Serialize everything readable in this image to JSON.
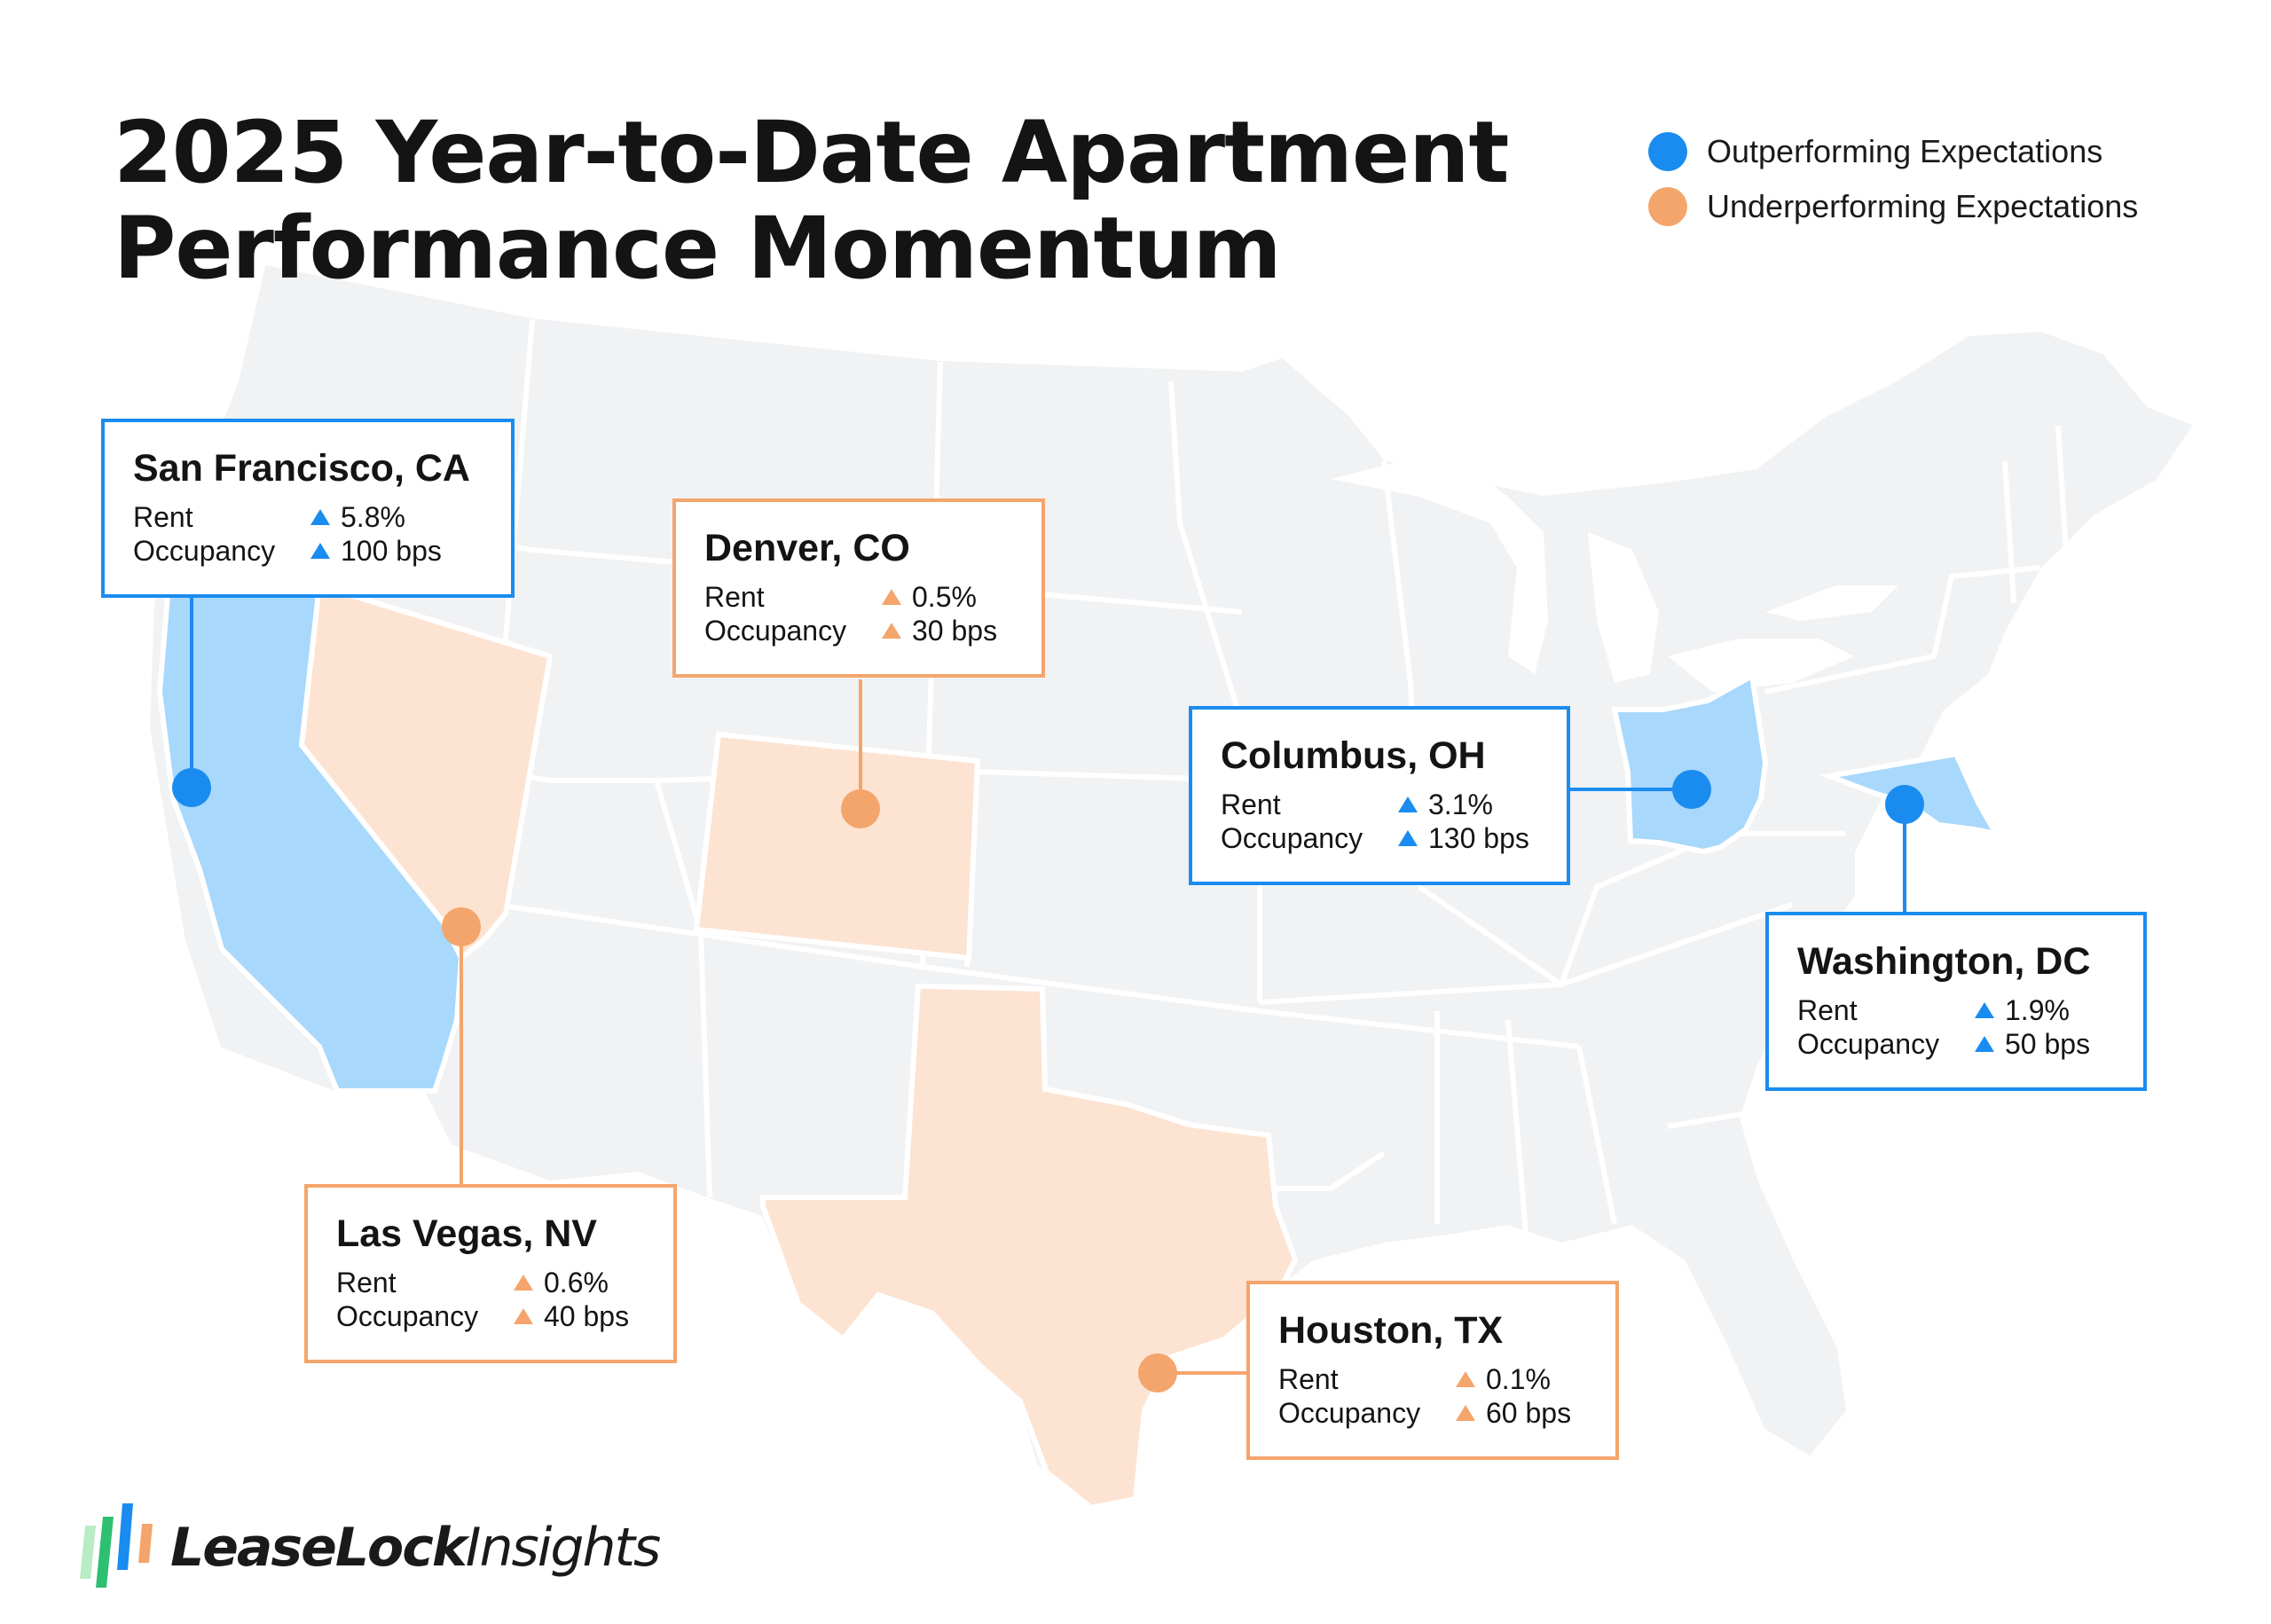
{
  "title": {
    "line1": "2025 Year-to-Date Apartment",
    "line2": "Performance Momentum"
  },
  "colors": {
    "outperform": "#1a8cf0",
    "outperform_fill": "#a8d8fb",
    "underperform": "#f4a56c",
    "underperform_fill": "#fde3d2",
    "land": "#f1f2f4",
    "border": "#ffffff"
  },
  "legend": {
    "outperform": "Outperforming Expectations",
    "underperform": "Underperforming Expectations"
  },
  "markets": {
    "san_francisco": {
      "city": "San Francisco, CA",
      "rent_label": "Rent",
      "rent": "5.8%",
      "occupancy_label": "Occupancy",
      "occupancy": "100 bps",
      "status": "outperform"
    },
    "denver": {
      "city": "Denver, CO",
      "rent_label": "Rent",
      "rent": "0.5%",
      "occupancy_label": "Occupancy",
      "occupancy": "30 bps",
      "status": "underperform"
    },
    "columbus": {
      "city": "Columbus, OH",
      "rent_label": "Rent",
      "rent": "3.1%",
      "occupancy_label": "Occupancy",
      "occupancy": "130 bps",
      "status": "outperform"
    },
    "washington": {
      "city": "Washington, DC",
      "rent_label": "Rent",
      "rent": "1.9%",
      "occupancy_label": "Occupancy",
      "occupancy": "50 bps",
      "status": "outperform"
    },
    "las_vegas": {
      "city": "Las Vegas, NV",
      "rent_label": "Rent",
      "rent": "0.6%",
      "occupancy_label": "Occupancy",
      "occupancy": "40 bps",
      "status": "underperform"
    },
    "houston": {
      "city": "Houston, TX",
      "rent_label": "Rent",
      "rent": "0.1%",
      "occupancy_label": "Occupancy",
      "occupancy": "60 bps",
      "status": "underperform"
    }
  },
  "logo": {
    "part1": "LeaseLock",
    "part2": "Insights",
    "icon": "bar-stripes-logo-icon"
  }
}
